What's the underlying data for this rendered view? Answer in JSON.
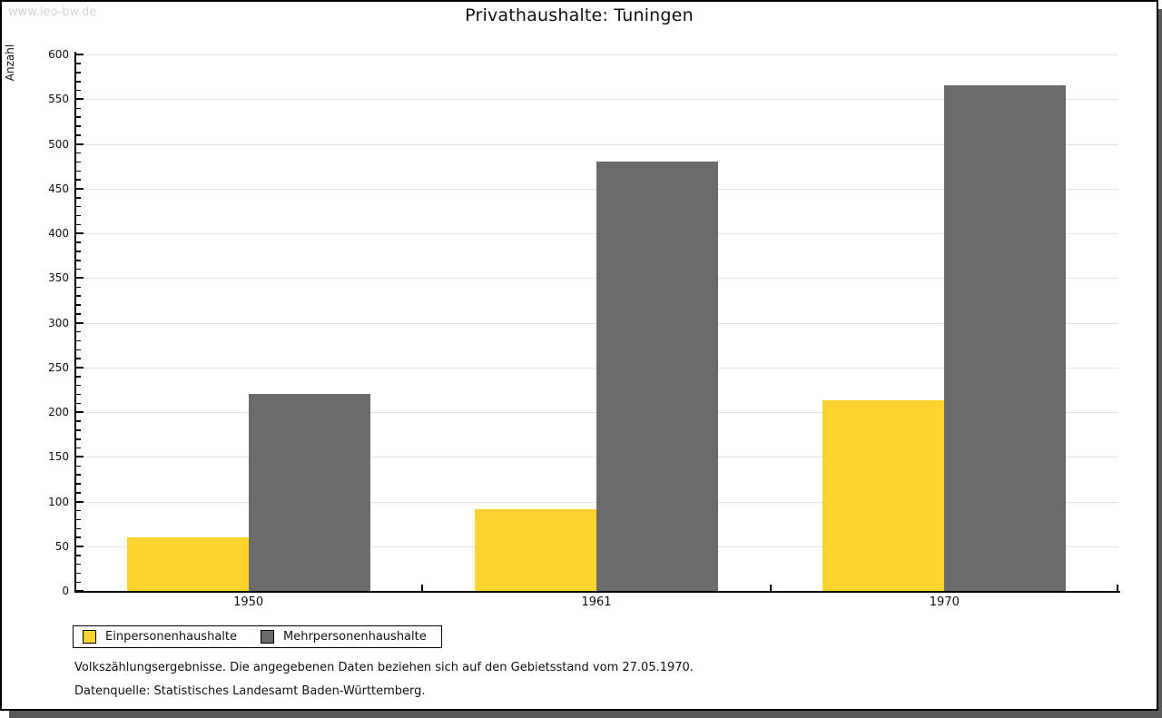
{
  "watermark": "www.leo-bw.de",
  "title": "Privathaushalte: Tuningen",
  "chart_data": {
    "type": "bar",
    "title": "Privathaushalte: Tuningen",
    "categories": [
      "1950",
      "1961",
      "1970"
    ],
    "series": [
      {
        "name": "Einpersonenhaushalte",
        "color": "#fcd32e",
        "values": [
          60,
          91,
          213
        ]
      },
      {
        "name": "Mehrpersonenhaushalte",
        "color": "#6b6b6b",
        "values": [
          220,
          480,
          565
        ]
      }
    ],
    "xlabel": "",
    "ylabel": "Anzahl",
    "ylim": [
      0,
      600
    ],
    "ytick_interval": 50,
    "yminor_tick_interval": 10,
    "grid": true,
    "legend_position": "bottom-left",
    "gridline_color": "#e3e3e3",
    "axis_color": "#000000"
  },
  "footnotes": {
    "line1": "Volkszählungsergebnisse. Die angegebenen Daten beziehen sich auf den Gebietsstand vom 27.05.1970.",
    "line2": "Datenquelle: Statistisches Landesamt Baden-Württemberg."
  }
}
